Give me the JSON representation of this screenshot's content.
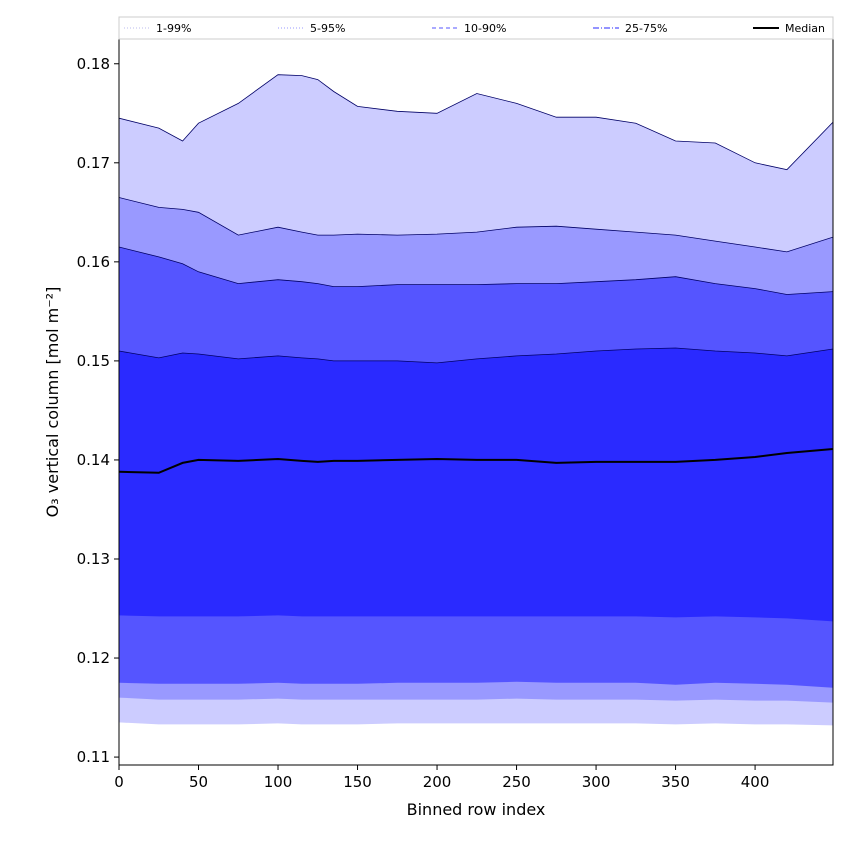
{
  "chart_data": {
    "type": "area",
    "title": "",
    "xlabel": "Binned row index",
    "ylabel": "O₃ vertical column [mol m⁻²]",
    "xlim": [
      0,
      449
    ],
    "ylim": [
      0.1092,
      0.1825
    ],
    "x_ticks": [
      0,
      50,
      100,
      150,
      200,
      250,
      300,
      350,
      400
    ],
    "y_ticks": [
      0.11,
      0.12,
      0.13,
      0.14,
      0.15,
      0.16,
      0.17,
      0.18
    ],
    "grid": false,
    "legend_placement": "top (above plot, horizontal)",
    "x": [
      0,
      25,
      40,
      50,
      75,
      100,
      115,
      125,
      135,
      150,
      175,
      200,
      225,
      250,
      275,
      300,
      325,
      350,
      375,
      400,
      420,
      449
    ],
    "series": [
      {
        "name": "Median",
        "color": "#000000",
        "values": [
          0.1388,
          0.1387,
          0.1397,
          0.14,
          0.1399,
          0.1401,
          0.1399,
          0.1398,
          0.1399,
          0.1399,
          0.14,
          0.1401,
          0.14,
          0.14,
          0.1397,
          0.1398,
          0.1398,
          0.1398,
          0.14,
          0.1403,
          0.1407,
          0.1411
        ]
      }
    ],
    "bands": [
      {
        "name": "1-99%",
        "fill_color": "#ccccff",
        "line_style": "dotted",
        "upper": [
          0.1745,
          0.1735,
          0.1722,
          0.174,
          0.176,
          0.1789,
          0.1788,
          0.1784,
          0.1772,
          0.1757,
          0.1752,
          0.175,
          0.177,
          0.176,
          0.1746,
          0.1746,
          0.174,
          0.1722,
          0.172,
          0.17,
          0.1693,
          0.1741
        ],
        "lower": [
          0.1135,
          0.1133,
          0.1133,
          0.1133,
          0.1133,
          0.1134,
          0.1133,
          0.1133,
          0.1133,
          0.1133,
          0.1134,
          0.1134,
          0.1134,
          0.1134,
          0.1134,
          0.1134,
          0.1134,
          0.1133,
          0.1134,
          0.1133,
          0.1133,
          0.1132
        ]
      },
      {
        "name": "5-95%",
        "fill_color": "#9999ff",
        "line_style": "dotted",
        "upper": [
          0.1665,
          0.1655,
          0.1653,
          0.165,
          0.1627,
          0.1635,
          0.163,
          0.1627,
          0.1627,
          0.1628,
          0.1627,
          0.1628,
          0.163,
          0.1635,
          0.1636,
          0.1633,
          0.163,
          0.1627,
          0.1621,
          0.1615,
          0.161,
          0.1625
        ],
        "lower": [
          0.116,
          0.1158,
          0.1158,
          0.1158,
          0.1158,
          0.1159,
          0.1158,
          0.1158,
          0.1158,
          0.1158,
          0.1158,
          0.1158,
          0.1158,
          0.1159,
          0.1158,
          0.1158,
          0.1158,
          0.1157,
          0.1158,
          0.1157,
          0.1157,
          0.1155
        ]
      },
      {
        "name": "10-90%",
        "fill_color": "#5555ff",
        "line_style": "dashed",
        "upper": [
          0.1615,
          0.1605,
          0.1598,
          0.159,
          0.1578,
          0.1582,
          0.158,
          0.1578,
          0.1575,
          0.1575,
          0.1577,
          0.1577,
          0.1577,
          0.1578,
          0.1578,
          0.158,
          0.1582,
          0.1585,
          0.1578,
          0.1573,
          0.1567,
          0.157
        ],
        "lower": [
          0.1175,
          0.1174,
          0.1174,
          0.1174,
          0.1174,
          0.1175,
          0.1174,
          0.1174,
          0.1174,
          0.1174,
          0.1175,
          0.1175,
          0.1175,
          0.1176,
          0.1175,
          0.1175,
          0.1175,
          0.1173,
          0.1175,
          0.1174,
          0.1173,
          0.117
        ]
      },
      {
        "name": "25-75%",
        "fill_color": "#2a2aff",
        "line_style": "dashdot",
        "upper": [
          0.151,
          0.1503,
          0.1508,
          0.1507,
          0.1502,
          0.1505,
          0.1503,
          0.1502,
          0.15,
          0.15,
          0.15,
          0.1498,
          0.1502,
          0.1505,
          0.1507,
          0.151,
          0.1512,
          0.1513,
          0.151,
          0.1508,
          0.1505,
          0.1512
        ],
        "lower": [
          0.1243,
          0.1242,
          0.1242,
          0.1242,
          0.1242,
          0.1243,
          0.1242,
          0.1242,
          0.1242,
          0.1242,
          0.1242,
          0.1242,
          0.1242,
          0.1242,
          0.1242,
          0.1242,
          0.1242,
          0.1241,
          0.1242,
          0.1241,
          0.124,
          0.1237
        ]
      }
    ]
  }
}
